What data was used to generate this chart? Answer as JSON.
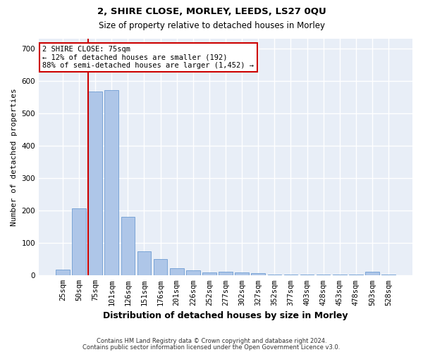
{
  "title_line1": "2, SHIRE CLOSE, MORLEY, LEEDS, LS27 0QU",
  "title_line2": "Size of property relative to detached houses in Morley",
  "xlabel": "Distribution of detached houses by size in Morley",
  "ylabel": "Number of detached properties",
  "bar_color": "#aec6e8",
  "bar_edge_color": "#5a8fcc",
  "background_color": "#e8eef7",
  "grid_color": "#ffffff",
  "fig_background": "#ffffff",
  "categories": [
    "25sqm",
    "50sqm",
    "75sqm",
    "101sqm",
    "126sqm",
    "151sqm",
    "176sqm",
    "201sqm",
    "226sqm",
    "252sqm",
    "277sqm",
    "302sqm",
    "327sqm",
    "352sqm",
    "377sqm",
    "403sqm",
    "428sqm",
    "453sqm",
    "478sqm",
    "503sqm",
    "528sqm"
  ],
  "values": [
    18,
    207,
    568,
    572,
    180,
    75,
    50,
    22,
    15,
    10,
    12,
    10,
    8,
    3,
    3,
    3,
    3,
    3,
    3,
    12,
    3
  ],
  "property_bin_index": 2,
  "annotation_text": "2 SHIRE CLOSE: 75sqm\n← 12% of detached houses are smaller (192)\n88% of semi-detached houses are larger (1,452) →",
  "annotation_box_facecolor": "#ffffff",
  "annotation_box_edgecolor": "#cc0000",
  "red_line_color": "#cc0000",
  "footnote1": "Contains HM Land Registry data © Crown copyright and database right 2024.",
  "footnote2": "Contains public sector information licensed under the Open Government Licence v3.0.",
  "ylim": [
    0,
    730
  ],
  "yticks": [
    0,
    100,
    200,
    300,
    400,
    500,
    600,
    700
  ]
}
